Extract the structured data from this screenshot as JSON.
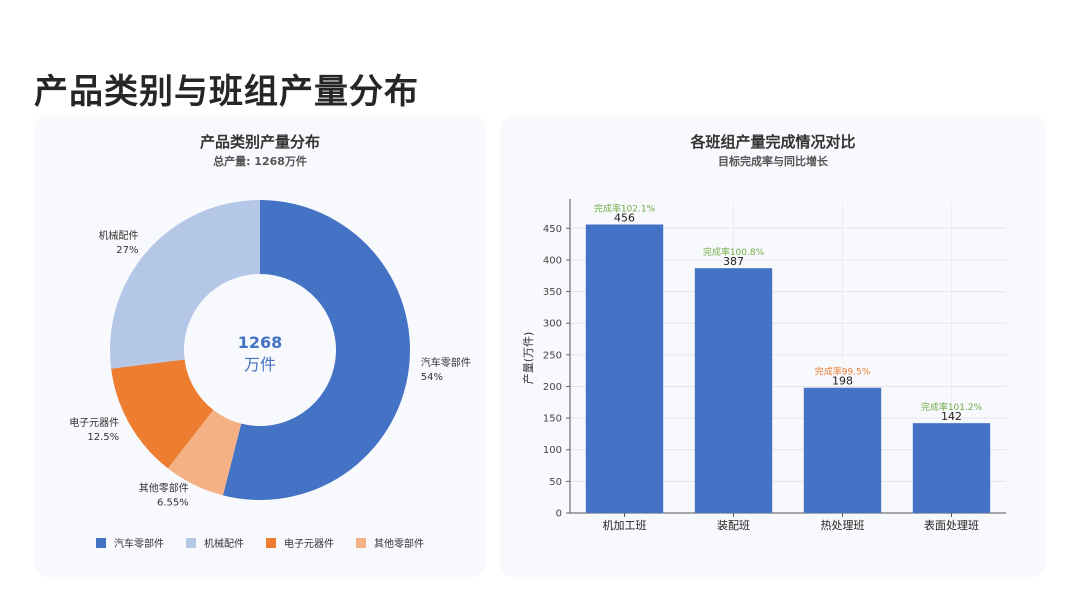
{
  "page": {
    "title": "产品类别与班组产量分布"
  },
  "chart_data": [
    {
      "type": "pie",
      "variant": "donut",
      "title": "产品类别产量分布",
      "subtitle": "总产量: 1268万件",
      "center_value": "1268",
      "center_unit": "万件",
      "legend_position": "bottom",
      "slices": [
        {
          "name": "汽车零部件",
          "pct_label": "54%",
          "value": 54,
          "color": "#4472c4"
        },
        {
          "name": "其他零部件",
          "pct_label": "6.55%",
          "value": 6.55,
          "color": "#f4b183"
        },
        {
          "name": "电子元器件",
          "pct_label": "12.5%",
          "value": 12.5,
          "color": "#ed7d31"
        },
        {
          "name": "机械配件",
          "pct_label": "27%",
          "value": 27,
          "color": "#b4c7e7"
        }
      ],
      "legend": [
        {
          "name": "汽车零部件",
          "color": "#4472c4"
        },
        {
          "name": "机械配件",
          "color": "#b4c7e7"
        },
        {
          "name": "电子元器件",
          "color": "#ed7d31"
        },
        {
          "name": "其他零部件",
          "color": "#f4b183"
        }
      ]
    },
    {
      "type": "bar",
      "title": "各班组产量完成情况对比",
      "subtitle": "目标完成率与同比增长",
      "ylabel": "产量(万件)",
      "ylim": [
        0,
        490
      ],
      "yticks": [
        0,
        50,
        100,
        150,
        200,
        250,
        300,
        350,
        400,
        450
      ],
      "grid": true,
      "bar_color": "#4472c4",
      "categories": [
        "机加工班",
        "装配班",
        "热处理班",
        "表面处理班"
      ],
      "values": [
        456,
        387,
        198,
        142
      ],
      "annotations": [
        {
          "text": "完成率102.1%",
          "color": "#70ad47"
        },
        {
          "text": "完成率100.8%",
          "color": "#70ad47"
        },
        {
          "text": "完成率99.5%",
          "color": "#ed7d31"
        },
        {
          "text": "完成率101.2%",
          "color": "#70ad47"
        }
      ]
    }
  ]
}
